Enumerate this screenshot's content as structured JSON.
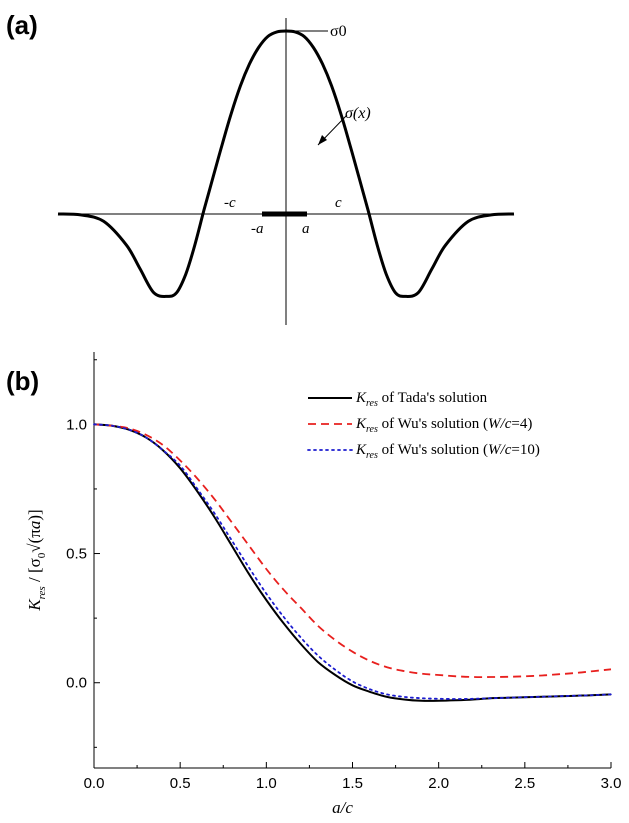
{
  "panel_a": {
    "label": "(a)",
    "peak_label": "σ0",
    "curve_label": "σ(x)",
    "labels": {
      "neg_c": "-c",
      "pos_c": "c",
      "neg_a": "-a",
      "pos_a": "a"
    }
  },
  "panel_b": {
    "label": "(b)"
  },
  "chart_data": [
    {
      "type": "line",
      "panel": "a",
      "title": "",
      "description_free": true,
      "x": [
        -2.5,
        -2.25,
        -2.0,
        -1.75,
        -1.6,
        -1.45,
        -1.3,
        -1.2,
        -1.1,
        -1.0,
        -0.9,
        -0.8,
        -0.7,
        -0.6,
        -0.5,
        -0.4,
        -0.3,
        -0.2,
        -0.1,
        0.0,
        0.1,
        0.2,
        0.3,
        0.4,
        0.5,
        0.6,
        0.7,
        0.8,
        0.9,
        1.0,
        1.1,
        1.2,
        1.3,
        1.45,
        1.6,
        1.75,
        2.0,
        2.25,
        2.5
      ],
      "series": [
        {
          "values": [
            0.0,
            -0.005,
            -0.04,
            -0.17,
            -0.3,
            -0.43,
            -0.45,
            -0.43,
            -0.33,
            -0.17,
            0.02,
            0.2,
            0.38,
            0.55,
            0.7,
            0.82,
            0.91,
            0.97,
            0.995,
            1.0,
            0.995,
            0.97,
            0.91,
            0.82,
            0.7,
            0.55,
            0.38,
            0.2,
            0.02,
            -0.17,
            -0.33,
            -0.43,
            -0.45,
            -0.43,
            -0.3,
            -0.17,
            -0.04,
            -0.005,
            0.0
          ]
        }
      ],
      "annotations": [
        "σ0",
        "σ(x)",
        "-c",
        "c",
        "-a",
        "a"
      ]
    },
    {
      "type": "line",
      "panel": "b",
      "xlabel": "a/c",
      "ylabel": "K_res / [σ0 √(πa)]",
      "xlim": [
        0.0,
        3.0
      ],
      "ylim": [
        -0.33,
        1.28
      ],
      "xticks": [
        "0.0",
        "0.5",
        "1.0",
        "1.5",
        "2.0",
        "2.5",
        "3.0"
      ],
      "yticks": [
        "0.0",
        "0.5",
        "1.0"
      ],
      "legend_position": "top-right",
      "x": [
        0.0,
        0.1,
        0.2,
        0.3,
        0.4,
        0.5,
        0.6,
        0.7,
        0.8,
        0.9,
        1.0,
        1.1,
        1.2,
        1.3,
        1.4,
        1.5,
        1.6,
        1.7,
        1.8,
        1.9,
        2.0,
        2.1,
        2.2,
        2.3,
        2.4,
        2.5,
        2.6,
        2.7,
        2.8,
        2.9,
        3.0
      ],
      "series": [
        {
          "name": "K_res of Tada's solution",
          "legend_main": "K",
          "legend_sub": "res",
          "legend_rest": " of Tada's solution",
          "color": "#000000",
          "dash": "solid",
          "values": [
            1.0,
            0.995,
            0.98,
            0.95,
            0.9,
            0.83,
            0.74,
            0.64,
            0.53,
            0.42,
            0.32,
            0.23,
            0.15,
            0.08,
            0.03,
            -0.01,
            -0.035,
            -0.055,
            -0.065,
            -0.07,
            -0.07,
            -0.068,
            -0.065,
            -0.06,
            -0.058,
            -0.056,
            -0.054,
            -0.052,
            -0.05,
            -0.048,
            -0.045
          ]
        },
        {
          "name": "K_res of Wu's solution (W/c=4)",
          "legend_main": "K",
          "legend_sub": "res",
          "legend_rest_1": " of Wu's solution (",
          "legend_italic": "W/c",
          "legend_rest_2": "=4)",
          "color": "#e8201e",
          "dash": "dashed",
          "values": [
            1.0,
            0.995,
            0.985,
            0.96,
            0.92,
            0.86,
            0.79,
            0.71,
            0.62,
            0.53,
            0.44,
            0.36,
            0.29,
            0.22,
            0.165,
            0.12,
            0.085,
            0.06,
            0.045,
            0.035,
            0.03,
            0.025,
            0.022,
            0.022,
            0.023,
            0.025,
            0.028,
            0.033,
            0.038,
            0.045,
            0.052
          ]
        },
        {
          "name": "K_res of Wu's solution (W/c=10)",
          "legend_main": "K",
          "legend_sub": "res",
          "legend_rest_1": " of Wu's solution (",
          "legend_italic": "W/c",
          "legend_rest_2": "=10)",
          "color": "#1c1ccf",
          "dash": "dotted",
          "values": [
            1.0,
            0.995,
            0.98,
            0.95,
            0.9,
            0.84,
            0.75,
            0.655,
            0.55,
            0.445,
            0.345,
            0.255,
            0.175,
            0.105,
            0.05,
            0.005,
            -0.025,
            -0.045,
            -0.055,
            -0.06,
            -0.062,
            -0.063,
            -0.062,
            -0.06,
            -0.058,
            -0.056,
            -0.054,
            -0.052,
            -0.05,
            -0.048,
            -0.045
          ]
        }
      ]
    }
  ]
}
